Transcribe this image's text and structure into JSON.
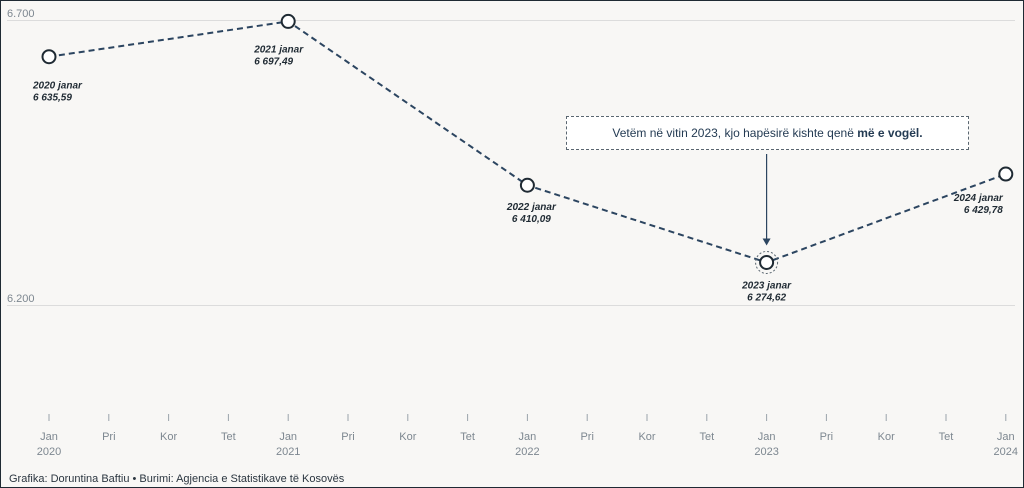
{
  "chart_data": {
    "type": "line",
    "y_ticks": [
      {
        "value": 6700,
        "label": "6.700"
      },
      {
        "value": 6200,
        "label": "6.200"
      }
    ],
    "x_ticks": [
      "Jan",
      "Pri",
      "Kor",
      "Tet",
      "Jan",
      "Pri",
      "Kor",
      "Tet",
      "Jan",
      "Pri",
      "Kor",
      "Tet",
      "Jan",
      "Pri",
      "Kor",
      "Tet",
      "Jan"
    ],
    "x_years": [
      "2020",
      "",
      "",
      "",
      "2021",
      "",
      "",
      "",
      "2022",
      "",
      "",
      "",
      "2023",
      "",
      "",
      "",
      "2024"
    ],
    "ylim": [
      6000,
      6730
    ],
    "series": [
      {
        "points": [
          {
            "x": "2020-01",
            "y": 6635.59,
            "label_title": "2020 janar",
            "label_value": "6 635,59"
          },
          {
            "x": "2021-01",
            "y": 6697.49,
            "label_title": "2021 janar",
            "label_value": "6 697,49"
          },
          {
            "x": "2022-01",
            "y": 6410.09,
            "label_title": "2022 janar",
            "label_value": "6 410,09"
          },
          {
            "x": "2023-01",
            "y": 6274.62,
            "label_title": "2023 janar",
            "label_value": "6 274,62"
          },
          {
            "x": "2024-01",
            "y": 6429.78,
            "label_title": "2024 janar",
            "label_value": "6 429,78"
          }
        ]
      }
    ],
    "line_color": "#2c4560",
    "annotation": {
      "text_before": "Vetëm në vitin 2023, kjo hapësirë kishte qenë ",
      "text_bold": "më e vogël.",
      "target": "2023-01"
    }
  },
  "footer": "Grafika: Doruntina Baftiu • Burimi: Agjencia e Statistikave të Kosovës"
}
